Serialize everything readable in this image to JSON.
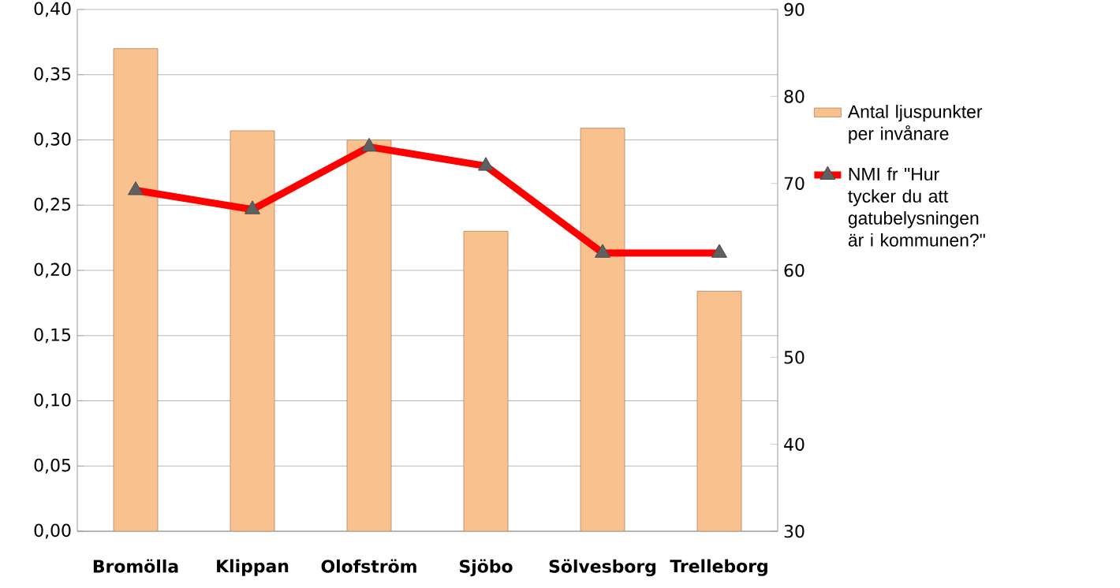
{
  "chart_data": {
    "type": "bar",
    "categories": [
      "Bromölla",
      "Klippan",
      "Olofström",
      "Sjöbo",
      "Sölvesborg",
      "Trelleborg"
    ],
    "series": [
      {
        "name": "Antal ljuspunkter per invånare",
        "color": "#f9c18e",
        "values": [
          0.37,
          0.307,
          0.3,
          0.23,
          0.309,
          0.184
        ]
      },
      {
        "name": "NMI fr \"Hur tycker du att gatubelysningen är i kommunen?\"",
        "type": "line",
        "axis": "y2",
        "color": "#ff0000",
        "marker": "triangle",
        "values": [
          69.2,
          67.0,
          74.2,
          72.0,
          62.0,
          62.0
        ]
      }
    ],
    "ylim": [
      0,
      0.4
    ],
    "yticks": [
      {
        "value": 0,
        "label": "0,00"
      },
      {
        "value": 0.05,
        "label": "0,05"
      },
      {
        "value": 0.1,
        "label": "0,10"
      },
      {
        "value": 0.15,
        "label": "0,15"
      },
      {
        "value": 0.2,
        "label": "0,20"
      },
      {
        "value": 0.25,
        "label": "0,25"
      },
      {
        "value": 0.3,
        "label": "0,30"
      },
      {
        "value": 0.35,
        "label": "0,35"
      },
      {
        "value": 0.4,
        "label": "0,40"
      }
    ],
    "y2lim": [
      30,
      90
    ],
    "y2ticks": [
      30,
      40,
      50,
      60,
      70,
      80,
      90
    ],
    "grid": "y",
    "legend": "right"
  }
}
